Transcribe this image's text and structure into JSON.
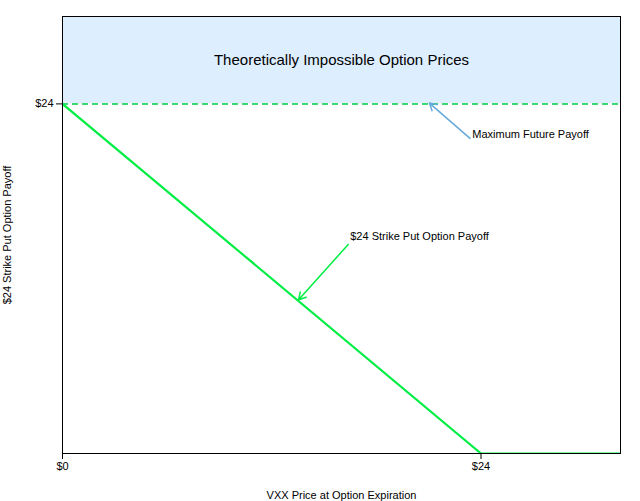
{
  "chart_data": {
    "type": "line",
    "title": "Theoretically Impossible Option Prices",
    "x_label": "VXX Price at Option Expiration",
    "y_label": "$24 Strike Put Option Payoff",
    "x": [
      0,
      24,
      32
    ],
    "values": [
      24,
      0,
      0
    ],
    "color": "#00ee44",
    "xlim": [
      0,
      32
    ],
    "ylim": [
      0,
      30
    ],
    "xticks": [
      {
        "value": 0,
        "label": "$0"
      },
      {
        "value": 24,
        "label": "$24"
      }
    ],
    "yticks": [
      {
        "value": 24,
        "label": "$24"
      }
    ],
    "grid": false,
    "regions": [
      {
        "y1": 24,
        "y2": 30,
        "color": "#ddeeff"
      }
    ],
    "reference_lines": [
      {
        "y": 24,
        "color": "#00cc44",
        "line_style": "dashed"
      }
    ],
    "annotations": [
      {
        "text": "Maximum Future Payoff",
        "x": 21,
        "y": 24.1,
        "text_x": 23.5,
        "text_y": 21.5,
        "color": "#66aadd"
      },
      {
        "text": "$24 Strike Put Option Payoff",
        "x": 13.5,
        "y": 10.5,
        "text_x": 16.5,
        "text_y": 14.5,
        "color": "#00ee44"
      }
    ]
  }
}
